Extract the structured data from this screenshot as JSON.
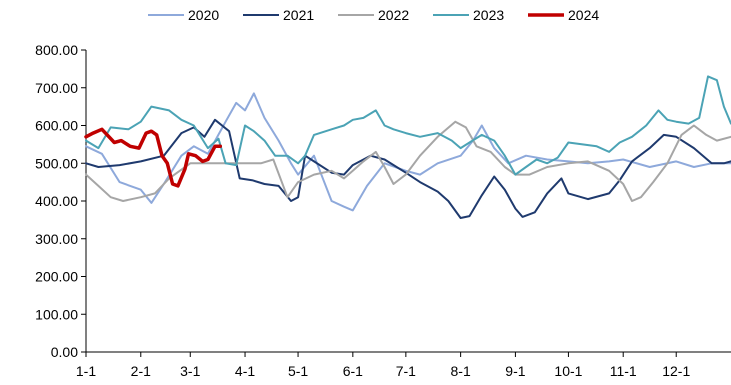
{
  "chart_data": {
    "type": "line",
    "title": "",
    "xlabel": "",
    "ylabel": "",
    "ylim": [
      0,
      800
    ],
    "yticks": [
      "800.00",
      "700.00",
      "600.00",
      "500.00",
      "400.00",
      "300.00",
      "200.00",
      "100.00",
      "0.00"
    ],
    "yticks_values": [
      800,
      700,
      600,
      500,
      400,
      300,
      200,
      100,
      0
    ],
    "xlim": [
      1,
      366
    ],
    "xticks": [
      "1-1",
      "2-1",
      "3-1",
      "4-1",
      "5-1",
      "6-1",
      "7-1",
      "8-1",
      "9-1",
      "10-1",
      "11-1",
      "12-1"
    ],
    "xticks_values": [
      1,
      32,
      60,
      91,
      121,
      152,
      182,
      213,
      244,
      274,
      305,
      335
    ],
    "x_unit": "day of year",
    "legend_position": "top",
    "grid": false,
    "series": [
      {
        "name": "2020",
        "color": "#8EA9DB",
        "width": 2,
        "points": [
          [
            1,
            545
          ],
          [
            10,
            525
          ],
          [
            20,
            450
          ],
          [
            32,
            430
          ],
          [
            38,
            395
          ],
          [
            45,
            445
          ],
          [
            55,
            520
          ],
          [
            62,
            545
          ],
          [
            70,
            525
          ],
          [
            80,
            610
          ],
          [
            86,
            660
          ],
          [
            91,
            640
          ],
          [
            96,
            685
          ],
          [
            102,
            620
          ],
          [
            110,
            560
          ],
          [
            117,
            500
          ],
          [
            121,
            470
          ],
          [
            130,
            520
          ],
          [
            140,
            400
          ],
          [
            147,
            385
          ],
          [
            152,
            375
          ],
          [
            160,
            440
          ],
          [
            170,
            500
          ],
          [
            182,
            480
          ],
          [
            190,
            470
          ],
          [
            200,
            500
          ],
          [
            213,
            520
          ],
          [
            220,
            560
          ],
          [
            225,
            600
          ],
          [
            232,
            540
          ],
          [
            240,
            500
          ],
          [
            250,
            520
          ],
          [
            262,
            510
          ],
          [
            274,
            505
          ],
          [
            285,
            500
          ],
          [
            297,
            505
          ],
          [
            305,
            510
          ],
          [
            320,
            490
          ],
          [
            335,
            505
          ],
          [
            345,
            490
          ],
          [
            355,
            500
          ],
          [
            366,
            500
          ]
        ]
      },
      {
        "name": "2021",
        "color": "#1F3A6E",
        "width": 2,
        "points": [
          [
            1,
            500
          ],
          [
            8,
            490
          ],
          [
            20,
            495
          ],
          [
            32,
            505
          ],
          [
            45,
            520
          ],
          [
            55,
            580
          ],
          [
            62,
            595
          ],
          [
            68,
            570
          ],
          [
            74,
            615
          ],
          [
            82,
            585
          ],
          [
            88,
            460
          ],
          [
            95,
            455
          ],
          [
            102,
            445
          ],
          [
            110,
            440
          ],
          [
            117,
            400
          ],
          [
            121,
            410
          ],
          [
            125,
            520
          ],
          [
            130,
            505
          ],
          [
            140,
            475
          ],
          [
            147,
            470
          ],
          [
            152,
            495
          ],
          [
            162,
            520
          ],
          [
            170,
            510
          ],
          [
            182,
            475
          ],
          [
            190,
            450
          ],
          [
            200,
            425
          ],
          [
            206,
            400
          ],
          [
            213,
            355
          ],
          [
            218,
            360
          ],
          [
            225,
            415
          ],
          [
            232,
            465
          ],
          [
            238,
            430
          ],
          [
            244,
            380
          ],
          [
            248,
            358
          ],
          [
            255,
            370
          ],
          [
            262,
            420
          ],
          [
            270,
            460
          ],
          [
            274,
            420
          ],
          [
            285,
            405
          ],
          [
            297,
            420
          ],
          [
            303,
            455
          ],
          [
            310,
            505
          ],
          [
            320,
            540
          ],
          [
            328,
            575
          ],
          [
            335,
            570
          ],
          [
            345,
            540
          ],
          [
            355,
            500
          ],
          [
            362,
            500
          ],
          [
            366,
            505
          ]
        ]
      },
      {
        "name": "2022",
        "color": "#A6A6A6",
        "width": 2,
        "points": [
          [
            1,
            470
          ],
          [
            8,
            440
          ],
          [
            15,
            410
          ],
          [
            22,
            400
          ],
          [
            32,
            410
          ],
          [
            40,
            420
          ],
          [
            48,
            460
          ],
          [
            60,
            500
          ],
          [
            70,
            500
          ],
          [
            82,
            500
          ],
          [
            91,
            500
          ],
          [
            100,
            500
          ],
          [
            107,
            510
          ],
          [
            115,
            410
          ],
          [
            121,
            450
          ],
          [
            130,
            470
          ],
          [
            140,
            480
          ],
          [
            147,
            460
          ],
          [
            152,
            480
          ],
          [
            158,
            505
          ],
          [
            165,
            530
          ],
          [
            170,
            490
          ],
          [
            175,
            445
          ],
          [
            182,
            470
          ],
          [
            190,
            520
          ],
          [
            200,
            570
          ],
          [
            210,
            610
          ],
          [
            216,
            595
          ],
          [
            222,
            545
          ],
          [
            230,
            530
          ],
          [
            238,
            490
          ],
          [
            244,
            470
          ],
          [
            252,
            470
          ],
          [
            262,
            490
          ],
          [
            274,
            500
          ],
          [
            285,
            505
          ],
          [
            297,
            480
          ],
          [
            305,
            445
          ],
          [
            310,
            400
          ],
          [
            315,
            410
          ],
          [
            322,
            450
          ],
          [
            330,
            500
          ],
          [
            338,
            575
          ],
          [
            345,
            600
          ],
          [
            352,
            575
          ],
          [
            358,
            560
          ],
          [
            366,
            570
          ]
        ]
      },
      {
        "name": "2023",
        "color": "#4BA3B5",
        "width": 2,
        "points": [
          [
            1,
            560
          ],
          [
            8,
            540
          ],
          [
            15,
            595
          ],
          [
            25,
            590
          ],
          [
            32,
            610
          ],
          [
            38,
            650
          ],
          [
            48,
            640
          ],
          [
            55,
            615
          ],
          [
            62,
            600
          ],
          [
            70,
            540
          ],
          [
            76,
            565
          ],
          [
            80,
            500
          ],
          [
            86,
            495
          ],
          [
            91,
            600
          ],
          [
            96,
            585
          ],
          [
            102,
            560
          ],
          [
            108,
            520
          ],
          [
            115,
            520
          ],
          [
            121,
            500
          ],
          [
            125,
            520
          ],
          [
            130,
            575
          ],
          [
            140,
            590
          ],
          [
            147,
            600
          ],
          [
            152,
            615
          ],
          [
            158,
            620
          ],
          [
            165,
            640
          ],
          [
            170,
            600
          ],
          [
            175,
            590
          ],
          [
            182,
            580
          ],
          [
            190,
            570
          ],
          [
            200,
            580
          ],
          [
            208,
            560
          ],
          [
            213,
            540
          ],
          [
            218,
            555
          ],
          [
            225,
            575
          ],
          [
            232,
            560
          ],
          [
            238,
            520
          ],
          [
            244,
            470
          ],
          [
            250,
            490
          ],
          [
            256,
            510
          ],
          [
            262,
            500
          ],
          [
            268,
            515
          ],
          [
            274,
            555
          ],
          [
            282,
            550
          ],
          [
            290,
            545
          ],
          [
            297,
            530
          ],
          [
            303,
            555
          ],
          [
            310,
            570
          ],
          [
            318,
            600
          ],
          [
            325,
            640
          ],
          [
            330,
            615
          ],
          [
            335,
            610
          ],
          [
            342,
            605
          ],
          [
            348,
            620
          ],
          [
            353,
            730
          ],
          [
            358,
            720
          ],
          [
            362,
            650
          ],
          [
            366,
            605
          ]
        ]
      },
      {
        "name": "2024",
        "color": "#C00000",
        "width": 3.5,
        "points": [
          [
            1,
            570
          ],
          [
            5,
            580
          ],
          [
            10,
            590
          ],
          [
            14,
            570
          ],
          [
            17,
            555
          ],
          [
            21,
            560
          ],
          [
            26,
            545
          ],
          [
            31,
            540
          ],
          [
            35,
            580
          ],
          [
            38,
            585
          ],
          [
            41,
            575
          ],
          [
            44,
            520
          ],
          [
            47,
            500
          ],
          [
            50,
            445
          ],
          [
            53,
            440
          ],
          [
            57,
            485
          ],
          [
            59,
            525
          ],
          [
            63,
            520
          ],
          [
            67,
            505
          ],
          [
            70,
            510
          ],
          [
            74,
            545
          ],
          [
            77,
            545
          ]
        ]
      }
    ]
  }
}
